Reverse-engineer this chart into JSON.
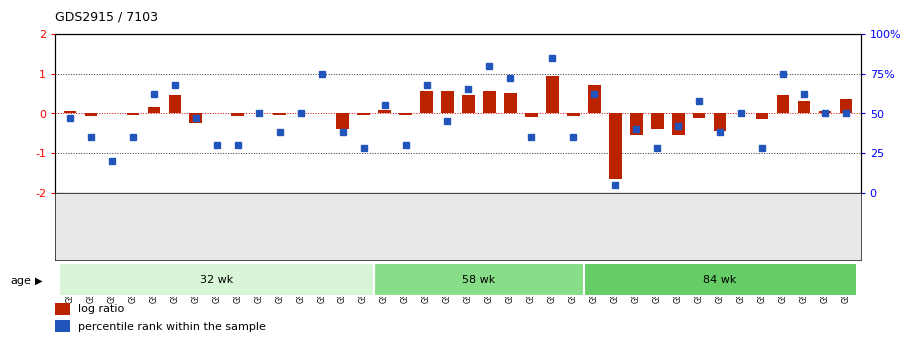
{
  "title": "GDS2915 / 7103",
  "samples": [
    "GSM97277",
    "GSM97278",
    "GSM97279",
    "GSM97280",
    "GSM97281",
    "GSM97282",
    "GSM97283",
    "GSM97284",
    "GSM97285",
    "GSM97286",
    "GSM97287",
    "GSM97288",
    "GSM97289",
    "GSM97290",
    "GSM97291",
    "GSM97292",
    "GSM97293",
    "GSM97294",
    "GSM97295",
    "GSM97296",
    "GSM97297",
    "GSM97298",
    "GSM97299",
    "GSM97300",
    "GSM97301",
    "GSM97302",
    "GSM97303",
    "GSM97304",
    "GSM97305",
    "GSM97306",
    "GSM97307",
    "GSM97308",
    "GSM97309",
    "GSM97310",
    "GSM97311",
    "GSM97312",
    "GSM97313",
    "GSM97314"
  ],
  "log_ratio": [
    0.05,
    -0.08,
    0.0,
    -0.05,
    0.15,
    0.45,
    -0.25,
    0.0,
    -0.08,
    0.0,
    -0.05,
    0.0,
    0.0,
    -0.4,
    -0.05,
    0.08,
    -0.05,
    0.55,
    0.55,
    0.45,
    0.55,
    0.5,
    -0.1,
    0.95,
    -0.08,
    0.7,
    -1.65,
    -0.55,
    -0.4,
    -0.55,
    -0.12,
    -0.45,
    0.0,
    -0.15,
    0.45,
    0.3,
    0.05,
    0.35
  ],
  "percentile": [
    0.47,
    0.35,
    0.2,
    0.35,
    0.62,
    0.68,
    0.47,
    0.3,
    0.3,
    0.5,
    0.38,
    0.5,
    0.75,
    0.38,
    0.28,
    0.55,
    0.3,
    0.68,
    0.45,
    0.65,
    0.8,
    0.72,
    0.35,
    0.85,
    0.35,
    0.62,
    0.05,
    0.4,
    0.28,
    0.42,
    0.58,
    0.38,
    0.5,
    0.28,
    0.75,
    0.62,
    0.5,
    0.5
  ],
  "groups": [
    {
      "label": "32 wk",
      "start": 0,
      "end": 15,
      "color": "#d8f5d8"
    },
    {
      "label": "58 wk",
      "start": 15,
      "end": 25,
      "color": "#88dd88"
    },
    {
      "label": "84 wk",
      "start": 25,
      "end": 38,
      "color": "#66cc66"
    }
  ],
  "bar_color": "#bb2200",
  "dot_color": "#2255bb",
  "zero_line_color": "#dd0000",
  "dotted_line_color": "#333333",
  "bg_color": "#ffffff",
  "ylim": [
    -2,
    2
  ],
  "legend_items": [
    {
      "label": "log ratio",
      "color": "#bb2200",
      "shape": "square"
    },
    {
      "label": "percentile rank within the sample",
      "color": "#2255bb",
      "shape": "square"
    }
  ]
}
